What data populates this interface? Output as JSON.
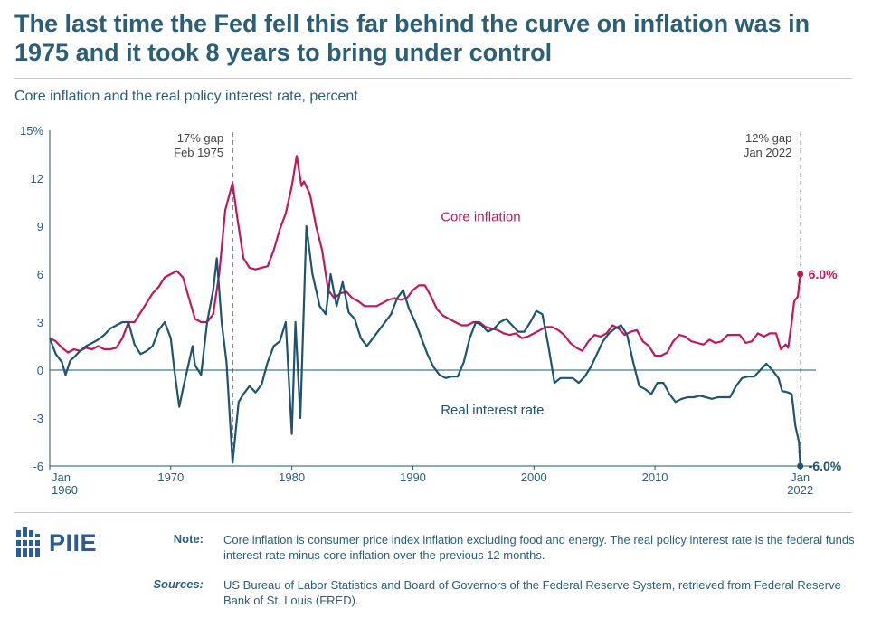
{
  "header": {
    "title": "The last time the Fed fell this far behind the curve on inflation was in 1975 and it took 8 years to bring under control",
    "subtitle": "Core inflation and the real policy interest rate, percent"
  },
  "footer": {
    "logo_text": "PIIE",
    "note_label": "Note:",
    "note_text": "Core inflation is consumer price index inflation excluding food and energy. The real policy interest rate is the federal funds interest rate minus core inflation over the previous 12 months.",
    "sources_label": "Sources:",
    "sources_text": "US Bureau of Labor Statistics and Board of Governors of the Federal Reserve System, retrieved from Federal Reserve Bank of St. Louis (FRED)."
  },
  "colors": {
    "core_inflation": "#c2185b",
    "real_rate": "#1e5470",
    "axis": "#1e5470",
    "text": "#2b5f78"
  },
  "chart_data": {
    "type": "line",
    "ylim": [
      -6,
      15
    ],
    "yticks": [
      -6,
      -3,
      0,
      3,
      6,
      9,
      12,
      15
    ],
    "ytick_labels": [
      "-6",
      "-3",
      "0",
      "3",
      "6",
      "9",
      "12",
      "15%"
    ],
    "xlim": [
      1960,
      2022.1
    ],
    "xticks": [
      {
        "x": 1960,
        "line1": "Jan",
        "line2": "1960"
      },
      {
        "x": 1970,
        "line1": "1970",
        "line2": ""
      },
      {
        "x": 1980,
        "line1": "1980",
        "line2": ""
      },
      {
        "x": 1990,
        "line1": "1990",
        "line2": ""
      },
      {
        "x": 2000,
        "line1": "2000",
        "line2": ""
      },
      {
        "x": 2010,
        "line1": "2010",
        "line2": ""
      },
      {
        "x": 2022,
        "line1": "Jan",
        "line2": "2022"
      }
    ],
    "annotations": [
      {
        "x": 1975.1,
        "line1": "17% gap",
        "line2": "Feb 1975",
        "align": "right"
      },
      {
        "x": 2022.05,
        "line1": "12% gap",
        "line2": "Jan 2022",
        "align": "right"
      }
    ],
    "series": [
      {
        "name": "Core inflation",
        "end_label": "6.0%",
        "points": [
          [
            1960,
            2.0
          ],
          [
            1960.5,
            1.8
          ],
          [
            1961,
            1.4
          ],
          [
            1961.5,
            1.1
          ],
          [
            1962,
            1.3
          ],
          [
            1962.5,
            1.2
          ],
          [
            1963,
            1.4
          ],
          [
            1963.5,
            1.3
          ],
          [
            1964,
            1.5
          ],
          [
            1964.5,
            1.3
          ],
          [
            1965,
            1.3
          ],
          [
            1965.5,
            1.4
          ],
          [
            1966,
            2.0
          ],
          [
            1966.5,
            3.0
          ],
          [
            1967,
            3.0
          ],
          [
            1967.5,
            3.6
          ],
          [
            1968,
            4.2
          ],
          [
            1968.5,
            4.8
          ],
          [
            1969,
            5.2
          ],
          [
            1969.5,
            5.8
          ],
          [
            1970,
            6.0
          ],
          [
            1970.5,
            6.2
          ],
          [
            1971,
            5.8
          ],
          [
            1971.5,
            4.5
          ],
          [
            1972,
            3.2
          ],
          [
            1972.5,
            3.0
          ],
          [
            1973,
            3.0
          ],
          [
            1973.5,
            3.5
          ],
          [
            1974,
            6.0
          ],
          [
            1974.5,
            10.0
          ],
          [
            1975.1,
            11.7
          ],
          [
            1975.5,
            9.5
          ],
          [
            1976,
            7.0
          ],
          [
            1976.5,
            6.4
          ],
          [
            1977,
            6.3
          ],
          [
            1977.5,
            6.4
          ],
          [
            1978,
            6.5
          ],
          [
            1978.5,
            7.5
          ],
          [
            1979,
            8.8
          ],
          [
            1979.5,
            9.8
          ],
          [
            1980,
            11.5
          ],
          [
            1980.4,
            13.4
          ],
          [
            1980.8,
            11.5
          ],
          [
            1981,
            11.8
          ],
          [
            1981.5,
            11.0
          ],
          [
            1982,
            9.0
          ],
          [
            1982.5,
            7.5
          ],
          [
            1983,
            5.0
          ],
          [
            1983.5,
            4.5
          ],
          [
            1984,
            4.8
          ],
          [
            1984.5,
            4.9
          ],
          [
            1985,
            4.5
          ],
          [
            1985.5,
            4.3
          ],
          [
            1986,
            4.0
          ],
          [
            1986.5,
            4.0
          ],
          [
            1987,
            4.0
          ],
          [
            1987.5,
            4.2
          ],
          [
            1988,
            4.4
          ],
          [
            1988.5,
            4.5
          ],
          [
            1989,
            4.4
          ],
          [
            1989.5,
            4.5
          ],
          [
            1990,
            5.0
          ],
          [
            1990.5,
            5.3
          ],
          [
            1991,
            5.3
          ],
          [
            1991.5,
            4.6
          ],
          [
            1992,
            3.8
          ],
          [
            1992.5,
            3.4
          ],
          [
            1993,
            3.2
          ],
          [
            1993.5,
            3.0
          ],
          [
            1994,
            2.8
          ],
          [
            1994.5,
            2.8
          ],
          [
            1995,
            3.0
          ],
          [
            1995.5,
            3.0
          ],
          [
            1996,
            2.7
          ],
          [
            1996.5,
            2.6
          ],
          [
            1997,
            2.5
          ],
          [
            1997.5,
            2.3
          ],
          [
            1998,
            2.2
          ],
          [
            1998.5,
            2.3
          ],
          [
            1999,
            2.0
          ],
          [
            1999.5,
            2.1
          ],
          [
            2000,
            2.3
          ],
          [
            2000.5,
            2.5
          ],
          [
            2001,
            2.7
          ],
          [
            2001.5,
            2.7
          ],
          [
            2002,
            2.5
          ],
          [
            2002.5,
            2.2
          ],
          [
            2003,
            1.7
          ],
          [
            2003.5,
            1.4
          ],
          [
            2004,
            1.2
          ],
          [
            2004.5,
            1.8
          ],
          [
            2005,
            2.2
          ],
          [
            2005.5,
            2.1
          ],
          [
            2006,
            2.3
          ],
          [
            2006.5,
            2.8
          ],
          [
            2007,
            2.6
          ],
          [
            2007.5,
            2.2
          ],
          [
            2008,
            2.4
          ],
          [
            2008.5,
            2.5
          ],
          [
            2009,
            1.8
          ],
          [
            2009.5,
            1.5
          ],
          [
            2010,
            0.9
          ],
          [
            2010.5,
            0.9
          ],
          [
            2011,
            1.1
          ],
          [
            2011.5,
            1.8
          ],
          [
            2012,
            2.2
          ],
          [
            2012.5,
            2.1
          ],
          [
            2013,
            1.8
          ],
          [
            2013.5,
            1.7
          ],
          [
            2014,
            1.6
          ],
          [
            2014.5,
            1.9
          ],
          [
            2015,
            1.7
          ],
          [
            2015.5,
            1.8
          ],
          [
            2016,
            2.2
          ],
          [
            2016.5,
            2.2
          ],
          [
            2017,
            2.2
          ],
          [
            2017.5,
            1.7
          ],
          [
            2018,
            1.8
          ],
          [
            2018.5,
            2.3
          ],
          [
            2019,
            2.1
          ],
          [
            2019.5,
            2.3
          ],
          [
            2020,
            2.3
          ],
          [
            2020.4,
            1.3
          ],
          [
            2020.8,
            1.6
          ],
          [
            2021,
            1.4
          ],
          [
            2021.3,
            3.0
          ],
          [
            2021.5,
            4.3
          ],
          [
            2021.8,
            4.6
          ],
          [
            2022,
            6.0
          ]
        ]
      },
      {
        "name": "Real interest rate",
        "end_label": "-6.0%",
        "points": [
          [
            1960,
            2.0
          ],
          [
            1960.5,
            1.0
          ],
          [
            1961,
            0.5
          ],
          [
            1961.3,
            -0.3
          ],
          [
            1961.7,
            0.6
          ],
          [
            1962,
            0.8
          ],
          [
            1962.5,
            1.2
          ],
          [
            1963,
            1.5
          ],
          [
            1963.5,
            1.7
          ],
          [
            1964,
            1.9
          ],
          [
            1964.5,
            2.2
          ],
          [
            1965,
            2.6
          ],
          [
            1965.5,
            2.8
          ],
          [
            1966,
            3.0
          ],
          [
            1966.5,
            3.0
          ],
          [
            1967,
            1.6
          ],
          [
            1967.5,
            1.0
          ],
          [
            1968,
            1.2
          ],
          [
            1968.5,
            1.5
          ],
          [
            1969,
            2.5
          ],
          [
            1969.5,
            3.0
          ],
          [
            1970,
            2.0
          ],
          [
            1970.3,
            0.0
          ],
          [
            1970.7,
            -2.3
          ],
          [
            1971,
            -1.2
          ],
          [
            1971.5,
            0.5
          ],
          [
            1971.8,
            1.5
          ],
          [
            1972,
            0.3
          ],
          [
            1972.5,
            -0.3
          ],
          [
            1973,
            3.0
          ],
          [
            1973.5,
            5.0
          ],
          [
            1973.8,
            7.0
          ],
          [
            1974.2,
            3.0
          ],
          [
            1974.6,
            0.5
          ],
          [
            1975.1,
            -5.8
          ],
          [
            1975.6,
            -2.0
          ],
          [
            1976,
            -1.5
          ],
          [
            1976.5,
            -1.0
          ],
          [
            1977,
            -1.4
          ],
          [
            1977.5,
            -0.9
          ],
          [
            1978,
            0.5
          ],
          [
            1978.5,
            1.5
          ],
          [
            1979,
            1.8
          ],
          [
            1979.5,
            3.0
          ],
          [
            1980,
            -4.0
          ],
          [
            1980.3,
            3.0
          ],
          [
            1980.7,
            -3.0
          ],
          [
            1981.2,
            9.0
          ],
          [
            1981.7,
            6.0
          ],
          [
            1982.3,
            4.0
          ],
          [
            1982.8,
            3.5
          ],
          [
            1983.2,
            6.0
          ],
          [
            1983.7,
            4.0
          ],
          [
            1984.2,
            5.5
          ],
          [
            1984.7,
            3.6
          ],
          [
            1985.2,
            3.2
          ],
          [
            1985.7,
            2.0
          ],
          [
            1986.2,
            1.5
          ],
          [
            1986.7,
            2.0
          ],
          [
            1987.2,
            2.5
          ],
          [
            1987.7,
            3.0
          ],
          [
            1988.2,
            3.5
          ],
          [
            1988.7,
            4.5
          ],
          [
            1989.2,
            5.0
          ],
          [
            1989.7,
            3.8
          ],
          [
            1990.2,
            3.0
          ],
          [
            1990.7,
            2.0
          ],
          [
            1991.2,
            1.0
          ],
          [
            1991.7,
            0.2
          ],
          [
            1992.2,
            -0.3
          ],
          [
            1992.7,
            -0.5
          ],
          [
            1993.2,
            -0.4
          ],
          [
            1993.7,
            -0.4
          ],
          [
            1994.2,
            0.5
          ],
          [
            1994.7,
            2.0
          ],
          [
            1995.2,
            3.0
          ],
          [
            1995.7,
            2.8
          ],
          [
            1996.2,
            2.4
          ],
          [
            1996.7,
            2.6
          ],
          [
            1997.2,
            3.0
          ],
          [
            1997.7,
            3.2
          ],
          [
            1998.2,
            2.8
          ],
          [
            1998.7,
            2.4
          ],
          [
            1999.2,
            2.4
          ],
          [
            1999.7,
            3.0
          ],
          [
            2000.2,
            3.7
          ],
          [
            2000.7,
            3.5
          ],
          [
            2001.2,
            1.5
          ],
          [
            2001.7,
            -0.8
          ],
          [
            2002.2,
            -0.5
          ],
          [
            2002.7,
            -0.5
          ],
          [
            2003.2,
            -0.5
          ],
          [
            2003.7,
            -0.8
          ],
          [
            2004.2,
            -0.4
          ],
          [
            2004.7,
            0.2
          ],
          [
            2005.2,
            1.0
          ],
          [
            2005.7,
            1.8
          ],
          [
            2006.2,
            2.3
          ],
          [
            2006.7,
            2.6
          ],
          [
            2007.2,
            2.8
          ],
          [
            2007.7,
            2.2
          ],
          [
            2008.2,
            0.5
          ],
          [
            2008.7,
            -1.0
          ],
          [
            2009.2,
            -1.2
          ],
          [
            2009.7,
            -1.5
          ],
          [
            2010.2,
            -0.8
          ],
          [
            2010.7,
            -0.8
          ],
          [
            2011.2,
            -1.5
          ],
          [
            2011.7,
            -2.0
          ],
          [
            2012.2,
            -1.8
          ],
          [
            2012.7,
            -1.7
          ],
          [
            2013.2,
            -1.7
          ],
          [
            2013.7,
            -1.6
          ],
          [
            2014.2,
            -1.7
          ],
          [
            2014.7,
            -1.8
          ],
          [
            2015.2,
            -1.7
          ],
          [
            2015.7,
            -1.7
          ],
          [
            2016.2,
            -1.7
          ],
          [
            2016.7,
            -1.0
          ],
          [
            2017.2,
            -0.5
          ],
          [
            2017.7,
            -0.4
          ],
          [
            2018.2,
            -0.4
          ],
          [
            2018.7,
            0.0
          ],
          [
            2019.2,
            0.4
          ],
          [
            2019.7,
            0.0
          ],
          [
            2020.2,
            -0.5
          ],
          [
            2020.5,
            -1.3
          ],
          [
            2021,
            -1.4
          ],
          [
            2021.3,
            -1.5
          ],
          [
            2021.6,
            -3.5
          ],
          [
            2021.9,
            -4.5
          ],
          [
            2022,
            -6.0
          ]
        ]
      }
    ]
  }
}
